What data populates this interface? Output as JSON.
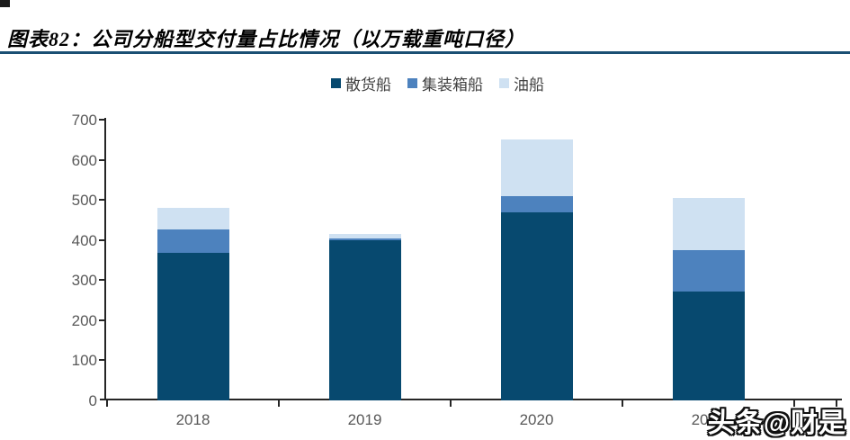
{
  "title": "图表82：公司分船型交付量占比情况（以万载重吨口径）",
  "watermark": "头条@财是",
  "colors": {
    "title_rule": "#1a4f73",
    "axis": "#262626",
    "tick_label": "#595959",
    "legend_label": "#404040"
  },
  "chart_data": {
    "type": "bar",
    "stacked": true,
    "title": "公司分船型交付量占比情况（以万载重吨口径）",
    "categories": [
      "2018",
      "2019",
      "2020",
      "2021"
    ],
    "series": [
      {
        "name": "散货船",
        "color": "#07496f",
        "values": [
          368,
          400,
          468,
          272
        ]
      },
      {
        "name": "集装箱船",
        "color": "#4d82be",
        "values": [
          58,
          3,
          42,
          102
        ]
      },
      {
        "name": "油船",
        "color": "#cfe1f2",
        "values": [
          54,
          12,
          140,
          130
        ]
      }
    ],
    "xlabel": "",
    "ylabel": "",
    "ylim": [
      0,
      700
    ],
    "yticks": [
      0,
      100,
      200,
      300,
      400,
      500,
      600,
      700
    ],
    "legend_position": "top",
    "grid": false,
    "background": "#ffffff"
  }
}
